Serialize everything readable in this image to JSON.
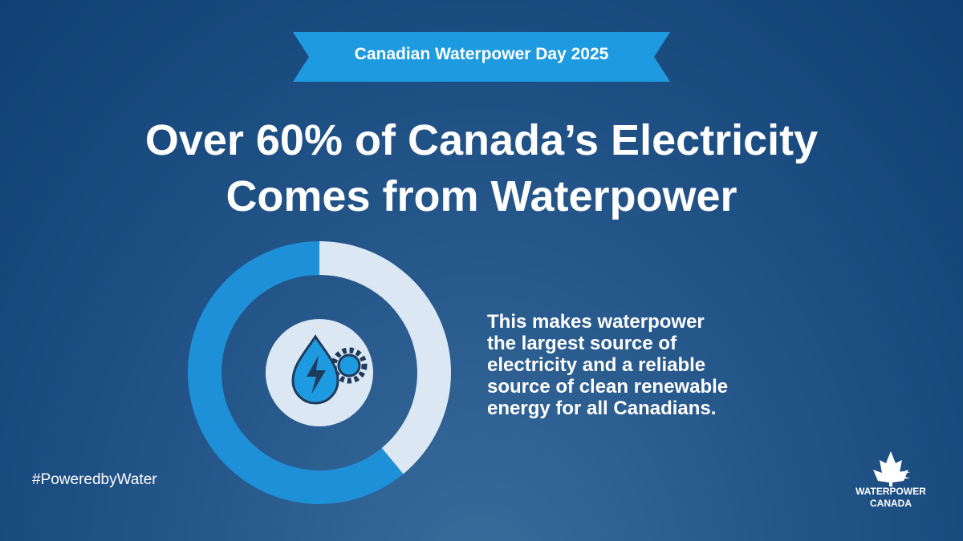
{
  "chart_data": {
    "type": "donut",
    "banner": "Canadian Waterpower Day 2025",
    "title_lines": [
      "Over 60% of Canada’s Electricity",
      "Comes from Waterpower"
    ],
    "annotation_lines": [
      "This makes waterpower",
      "the largest source of",
      "electricity and a reliable",
      "source of clean renewable",
      "energy for all Canadians."
    ],
    "hashtag": "#PoweredbyWater",
    "logo_lines": [
      "WATERPOWER",
      "CANADA"
    ],
    "values": [
      61,
      39
    ],
    "colors": [
      "#1e90d8",
      "#dbe8f3"
    ]
  }
}
